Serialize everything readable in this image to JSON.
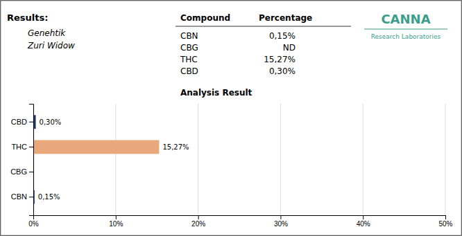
{
  "chart_data": [
    {
      "type": "table",
      "title": "Results:",
      "columns": [
        "Compound",
        "Percentage"
      ],
      "categories": [
        "CBN",
        "CBG",
        "THC",
        "CBD"
      ],
      "values": [
        0.15,
        null,
        15.27,
        0.3
      ],
      "value_labels": [
        "0,15%",
        "ND",
        "15,27%",
        "0,30%"
      ],
      "annotations": [
        {
          "text": "Genehtik"
        },
        {
          "text": "Zuri Widow"
        },
        {
          "text": "CANNA",
          "color": "#3a9e8a"
        },
        {
          "text": "Research Laboratories",
          "color": "#3a9e8a"
        }
      ]
    },
    {
      "type": "bar",
      "title": "Analysis Result",
      "orientation": "horizontal",
      "categories": [
        "CBD",
        "THC",
        "CBG",
        "CBN"
      ],
      "values": [
        0.3,
        15.27,
        0.0,
        0.15
      ],
      "value_labels": [
        "0,30%",
        "15,27%",
        null,
        "0,15%"
      ],
      "data_labels": true,
      "colors": [
        "#1a3a6b",
        "#e8a87c",
        "#1a3a6b",
        "#1a3a6b"
      ],
      "xlim": [
        0,
        50
      ],
      "xticks": [
        {
          "value": 0,
          "label": "0%"
        },
        {
          "value": 10,
          "label": "10%"
        },
        {
          "value": 20,
          "label": "20%"
        },
        {
          "value": 30,
          "label": "30%"
        },
        {
          "value": 40,
          "label": "40%"
        },
        {
          "value": 50,
          "label": "50%"
        }
      ],
      "grid": true
    }
  ]
}
